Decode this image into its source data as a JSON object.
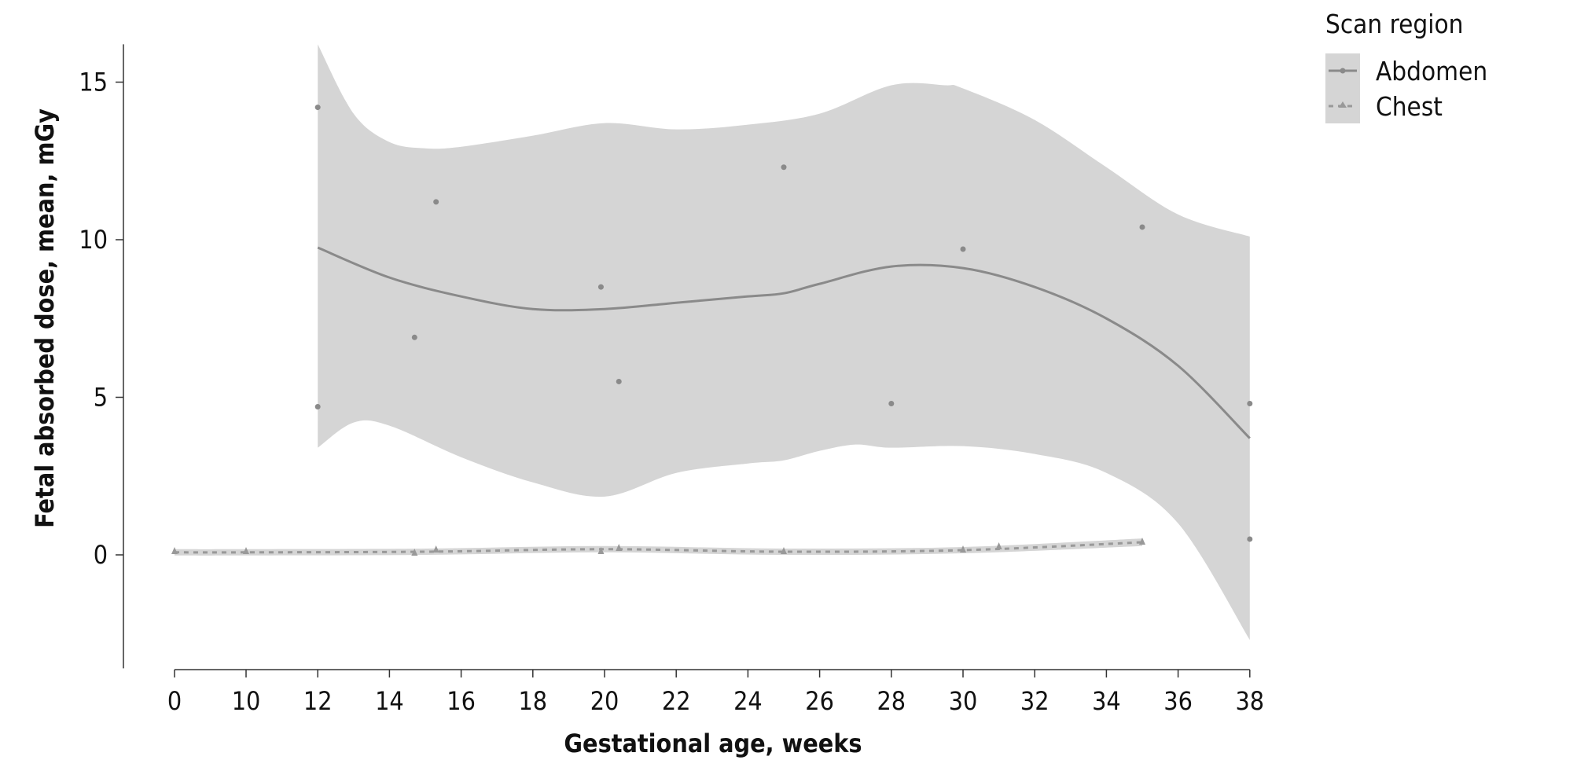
{
  "chart_data": {
    "type": "scatter",
    "title": "",
    "xlabel": "Gestational age, weeks",
    "ylabel": "Fetal absorbed dose, mean, mGy",
    "x_ticks": [
      0,
      10,
      12,
      14,
      16,
      18,
      20,
      22,
      24,
      26,
      28,
      30,
      32,
      34,
      36,
      38
    ],
    "y_ticks": [
      0,
      5,
      10,
      15
    ],
    "ylim": [
      -3.6,
      16.2
    ],
    "grid": false,
    "legend": {
      "title": "Scan region",
      "placement": "top-right"
    },
    "series": [
      {
        "name": "Abdomen",
        "color": "#8a8a8a",
        "line_style": "solid",
        "marker": "circle",
        "points": [
          [
            12,
            14.2
          ],
          [
            12,
            4.7
          ],
          [
            14.7,
            6.9
          ],
          [
            15.3,
            11.2
          ],
          [
            19.9,
            8.5
          ],
          [
            20.4,
            5.5
          ],
          [
            25,
            12.3
          ],
          [
            28,
            4.8
          ],
          [
            30,
            9.7
          ],
          [
            35,
            10.4
          ],
          [
            38,
            4.8
          ],
          [
            38,
            0.5
          ]
        ],
        "smooth": [
          [
            12,
            9.75
          ],
          [
            14,
            8.8
          ],
          [
            16,
            8.2
          ],
          [
            18,
            7.8
          ],
          [
            20,
            7.8
          ],
          [
            22,
            8.0
          ],
          [
            24,
            8.2
          ],
          [
            25,
            8.3
          ],
          [
            26,
            8.6
          ],
          [
            28,
            9.15
          ],
          [
            30,
            9.1
          ],
          [
            32,
            8.5
          ],
          [
            34,
            7.5
          ],
          [
            36,
            6.0
          ],
          [
            38,
            3.7
          ]
        ],
        "ci_upper": [
          [
            12,
            16.2
          ],
          [
            13,
            14.0
          ],
          [
            14,
            13.1
          ],
          [
            15,
            12.9
          ],
          [
            16,
            12.95
          ],
          [
            18,
            13.3
          ],
          [
            20,
            13.7
          ],
          [
            22,
            13.5
          ],
          [
            24,
            13.65
          ],
          [
            26,
            14.0
          ],
          [
            28,
            14.9
          ],
          [
            29.5,
            14.9
          ],
          [
            30,
            14.8
          ],
          [
            32,
            13.8
          ],
          [
            34,
            12.3
          ],
          [
            36,
            10.8
          ],
          [
            38,
            10.1
          ]
        ],
        "ci_lower": [
          [
            12,
            3.4
          ],
          [
            13,
            4.2
          ],
          [
            14,
            4.1
          ],
          [
            16,
            3.1
          ],
          [
            18,
            2.3
          ],
          [
            20,
            1.85
          ],
          [
            22,
            2.6
          ],
          [
            24,
            2.9
          ],
          [
            25,
            3.0
          ],
          [
            26,
            3.3
          ],
          [
            27,
            3.5
          ],
          [
            28,
            3.4
          ],
          [
            30,
            3.45
          ],
          [
            32,
            3.2
          ],
          [
            34,
            2.6
          ],
          [
            36,
            1.0
          ],
          [
            38,
            -2.7
          ]
        ]
      },
      {
        "name": "Chest",
        "color": "#999999",
        "line_style": "dashed",
        "marker": "triangle",
        "points": [
          [
            0,
            0.1
          ],
          [
            10,
            0.1
          ],
          [
            14.7,
            0.05
          ],
          [
            15.3,
            0.15
          ],
          [
            19.9,
            0.1
          ],
          [
            20.4,
            0.2
          ],
          [
            25,
            0.1
          ],
          [
            30,
            0.15
          ],
          [
            31,
            0.25
          ],
          [
            35,
            0.4
          ]
        ],
        "smooth": [
          [
            0,
            0.08
          ],
          [
            10,
            0.08
          ],
          [
            15,
            0.1
          ],
          [
            20,
            0.18
          ],
          [
            25,
            0.1
          ],
          [
            30,
            0.15
          ],
          [
            35,
            0.4
          ]
        ],
        "ci_upper": [
          [
            0,
            0.18
          ],
          [
            10,
            0.18
          ],
          [
            15,
            0.2
          ],
          [
            20,
            0.28
          ],
          [
            25,
            0.2
          ],
          [
            30,
            0.25
          ],
          [
            35,
            0.52
          ]
        ],
        "ci_lower": [
          [
            0,
            -0.02
          ],
          [
            10,
            -0.02
          ],
          [
            15,
            0.0
          ],
          [
            20,
            0.08
          ],
          [
            25,
            0.0
          ],
          [
            30,
            0.05
          ],
          [
            35,
            0.28
          ]
        ]
      }
    ],
    "band_color": "#d5d5d5"
  }
}
